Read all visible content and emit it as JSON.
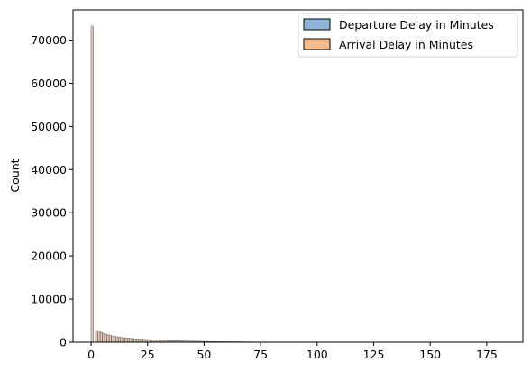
{
  "chart_data": {
    "type": "histogram",
    "title": "",
    "xlabel": "",
    "ylabel": "Count",
    "xlim": [
      -8,
      191
    ],
    "ylim": [
      0,
      77000
    ],
    "x_ticks": [
      0,
      25,
      50,
      75,
      100,
      125,
      150,
      175
    ],
    "y_ticks": [
      0,
      10000,
      20000,
      30000,
      40000,
      50000,
      60000,
      70000
    ],
    "grid": false,
    "legend_position": "top-right",
    "bin_width": 1,
    "series": [
      {
        "name": "Departure Delay in Minutes",
        "color": "#8fb3d8",
        "values": [
          73000,
          0,
          2600,
          2500,
          2250,
          2000,
          1800,
          1650,
          1500,
          1400,
          1300,
          1200,
          1100,
          1050,
          1000,
          950,
          900,
          850,
          800,
          750,
          720,
          690,
          660,
          630,
          600,
          570,
          540,
          510,
          490,
          470,
          450,
          430,
          410,
          390,
          370,
          350,
          335,
          320,
          305,
          290,
          275,
          262,
          250,
          238,
          226,
          215,
          205,
          195,
          185,
          176,
          167,
          159,
          151,
          144,
          137,
          130,
          124,
          118,
          112,
          106,
          101,
          96,
          91,
          86,
          82,
          78,
          74,
          70,
          66,
          63,
          60,
          57,
          54,
          51,
          48,
          45,
          43,
          41,
          39,
          37,
          35,
          33,
          31,
          30,
          28,
          27,
          25,
          24,
          23,
          22,
          21,
          20,
          19,
          18,
          17,
          16,
          15,
          15,
          14,
          13,
          12,
          12,
          11,
          11,
          10,
          10,
          9,
          9,
          8,
          8,
          8,
          7,
          7,
          7,
          6,
          6,
          6,
          6,
          5,
          5,
          5,
          5,
          5,
          4,
          4,
          4,
          4,
          4,
          4,
          3,
          3,
          3,
          3,
          3,
          3,
          3,
          3,
          3,
          2,
          2,
          2,
          2,
          2,
          2,
          2,
          2,
          2,
          2,
          2,
          2,
          2,
          2,
          2,
          2,
          1,
          1,
          1,
          1,
          1,
          1,
          1,
          1,
          1,
          1,
          1,
          1,
          1,
          1,
          1,
          1,
          1,
          1,
          1,
          1,
          1,
          1,
          1,
          1,
          1,
          1,
          1,
          1,
          1,
          1,
          1,
          1,
          1
        ]
      },
      {
        "name": "Arrival Delay in Minutes",
        "color": "#f7bc8c",
        "values": [
          73300,
          0,
          2700,
          2550,
          2300,
          2050,
          1850,
          1700,
          1550,
          1450,
          1350,
          1250,
          1150,
          1080,
          1020,
          970,
          920,
          870,
          820,
          770,
          740,
          710,
          680,
          650,
          620,
          590,
          560,
          530,
          505,
          485,
          465,
          445,
          425,
          405,
          385,
          365,
          348,
          332,
          316,
          300,
          285,
          271,
          258,
          246,
          234,
          222,
          211,
          201,
          191,
          182,
          173,
          164,
          156,
          148,
          141,
          134,
          127,
          121,
          115,
          109,
          104,
          99,
          94,
          89,
          85,
          81,
          77,
          73,
          69,
          65,
          62,
          59,
          56,
          53,
          50,
          47,
          45,
          43,
          41,
          39,
          37,
          35,
          33,
          31,
          29,
          28,
          26,
          25,
          24,
          23,
          22,
          21,
          20,
          19,
          18,
          17,
          16,
          15,
          15,
          14,
          13,
          12,
          12,
          11,
          11,
          10,
          10,
          9,
          9,
          9,
          8,
          8,
          7,
          7,
          7,
          6,
          6,
          6,
          6,
          5,
          5,
          5,
          5,
          4,
          4,
          4,
          4,
          4,
          4,
          3,
          3,
          3,
          3,
          3,
          3,
          3,
          3,
          3,
          2,
          2,
          2,
          2,
          2,
          2,
          2,
          2,
          2,
          2,
          2,
          2,
          2,
          2,
          2,
          2,
          1,
          1,
          1,
          1,
          1,
          1,
          1,
          1,
          1,
          1,
          1,
          1,
          1,
          1,
          1,
          1,
          1,
          1,
          1,
          1,
          1,
          1,
          1,
          1,
          1,
          1,
          1,
          1,
          1,
          1,
          1,
          1,
          1
        ]
      }
    ]
  }
}
